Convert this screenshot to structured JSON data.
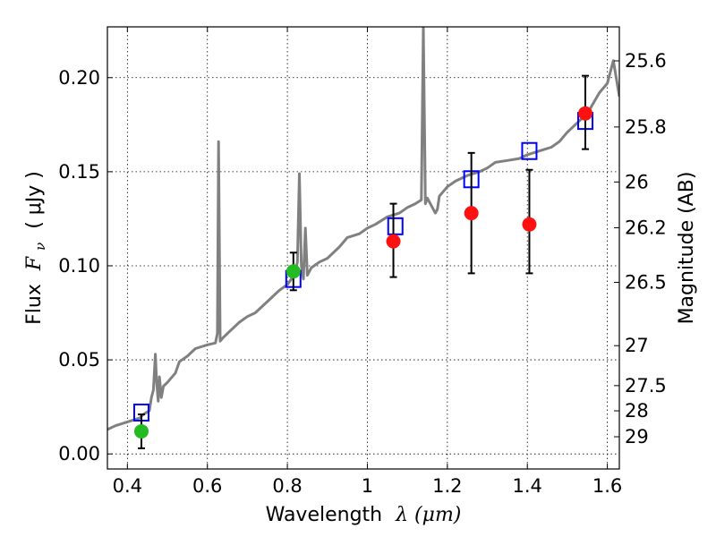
{
  "chart_data": {
    "type": "scatter",
    "xlabel_text": "Wavelength",
    "xlabel_math": "λ (μm)",
    "ylabel_text": "Flux",
    "ylabel_math": "F",
    "ylabel_sub": "ν",
    "ylabel_unit": "( μJy )",
    "y2label": "Magnitude (AB)",
    "xlim": [
      0.35,
      1.63
    ],
    "ylim": [
      -0.008,
      0.227
    ],
    "grid": true,
    "x_ticks": [
      {
        "v": 0.4,
        "label": "0.4"
      },
      {
        "v": 0.6,
        "label": "0.6"
      },
      {
        "v": 0.8,
        "label": "0.8"
      },
      {
        "v": 1.0,
        "label": "1"
      },
      {
        "v": 1.2,
        "label": "1.2"
      },
      {
        "v": 1.4,
        "label": "1.4"
      },
      {
        "v": 1.6,
        "label": "1.6"
      }
    ],
    "y_ticks": [
      {
        "v": 0.0,
        "label": "0.00"
      },
      {
        "v": 0.05,
        "label": "0.05"
      },
      {
        "v": 0.1,
        "label": "0.10"
      },
      {
        "v": 0.15,
        "label": "0.15"
      },
      {
        "v": 0.2,
        "label": "0.20"
      }
    ],
    "mag_ticks": [
      {
        "v": 25.6,
        "label": "25.6"
      },
      {
        "v": 25.8,
        "label": "25.8"
      },
      {
        "v": 26.0,
        "label": "26"
      },
      {
        "v": 26.2,
        "label": "26.2"
      },
      {
        "v": 26.5,
        "label": "26.5"
      },
      {
        "v": 27.0,
        "label": "27"
      },
      {
        "v": 27.5,
        "label": "27.5"
      },
      {
        "v": 28.0,
        "label": "28"
      },
      {
        "v": 29.0,
        "label": "29"
      }
    ],
    "series": [
      {
        "kind": "line",
        "color": "#808080",
        "points": [
          [
            0.35,
            0.013
          ],
          [
            0.37,
            0.015
          ],
          [
            0.4,
            0.017
          ],
          [
            0.43,
            0.019
          ],
          [
            0.44,
            0.021
          ],
          [
            0.455,
            0.023
          ],
          [
            0.46,
            0.03
          ],
          [
            0.465,
            0.034
          ],
          [
            0.47,
            0.053
          ],
          [
            0.473,
            0.038
          ],
          [
            0.477,
            0.028
          ],
          [
            0.48,
            0.041
          ],
          [
            0.485,
            0.03
          ],
          [
            0.49,
            0.036
          ],
          [
            0.5,
            0.038
          ],
          [
            0.52,
            0.043
          ],
          [
            0.53,
            0.049
          ],
          [
            0.55,
            0.052
          ],
          [
            0.57,
            0.056
          ],
          [
            0.6,
            0.058
          ],
          [
            0.62,
            0.059
          ],
          [
            0.625,
            0.064
          ],
          [
            0.628,
            0.166
          ],
          [
            0.632,
            0.06
          ],
          [
            0.64,
            0.062
          ],
          [
            0.66,
            0.066
          ],
          [
            0.68,
            0.07
          ],
          [
            0.7,
            0.073
          ],
          [
            0.72,
            0.075
          ],
          [
            0.75,
            0.081
          ],
          [
            0.78,
            0.087
          ],
          [
            0.8,
            0.09
          ],
          [
            0.81,
            0.093
          ],
          [
            0.82,
            0.097
          ],
          [
            0.825,
            0.102
          ],
          [
            0.83,
            0.149
          ],
          [
            0.835,
            0.1
          ],
          [
            0.84,
            0.093
          ],
          [
            0.845,
            0.12
          ],
          [
            0.85,
            0.095
          ],
          [
            0.86,
            0.099
          ],
          [
            0.88,
            0.102
          ],
          [
            0.9,
            0.104
          ],
          [
            0.93,
            0.11
          ],
          [
            0.95,
            0.115
          ],
          [
            0.98,
            0.117
          ],
          [
            1.0,
            0.12
          ],
          [
            1.02,
            0.122
          ],
          [
            1.05,
            0.126
          ],
          [
            1.08,
            0.128
          ],
          [
            1.1,
            0.131
          ],
          [
            1.12,
            0.133
          ],
          [
            1.135,
            0.135
          ],
          [
            1.14,
            0.227
          ],
          [
            1.145,
            0.133
          ],
          [
            1.15,
            0.136
          ],
          [
            1.17,
            0.128
          ],
          [
            1.175,
            0.13
          ],
          [
            1.18,
            0.137
          ],
          [
            1.2,
            0.142
          ],
          [
            1.22,
            0.145
          ],
          [
            1.25,
            0.148
          ],
          [
            1.28,
            0.15
          ],
          [
            1.3,
            0.152
          ],
          [
            1.32,
            0.155
          ],
          [
            1.35,
            0.156
          ],
          [
            1.38,
            0.157
          ],
          [
            1.4,
            0.159
          ],
          [
            1.43,
            0.161
          ],
          [
            1.46,
            0.163
          ],
          [
            1.48,
            0.166
          ],
          [
            1.5,
            0.171
          ],
          [
            1.52,
            0.175
          ],
          [
            1.55,
            0.181
          ],
          [
            1.58,
            0.192
          ],
          [
            1.6,
            0.197
          ],
          [
            1.615,
            0.209
          ],
          [
            1.63,
            0.19
          ]
        ]
      },
      {
        "kind": "squares",
        "color": "#0000ff",
        "points": [
          [
            0.435,
            0.022
          ],
          [
            0.815,
            0.093
          ],
          [
            1.07,
            0.121
          ],
          [
            1.26,
            0.146
          ],
          [
            1.405,
            0.161
          ],
          [
            1.545,
            0.177
          ]
        ]
      },
      {
        "kind": "circles",
        "color": "#22bb22",
        "points": [
          [
            0.435,
            0.012,
            0.003,
            0.021
          ],
          [
            0.815,
            0.097,
            0.087,
            0.107
          ]
        ]
      },
      {
        "kind": "circles",
        "color": "#ff1111",
        "points": [
          [
            1.065,
            0.113,
            0.094,
            0.133
          ],
          [
            1.26,
            0.128,
            0.096,
            0.16
          ],
          [
            1.405,
            0.122,
            0.096,
            0.151
          ],
          [
            1.545,
            0.181,
            0.162,
            0.201
          ]
        ]
      }
    ]
  }
}
